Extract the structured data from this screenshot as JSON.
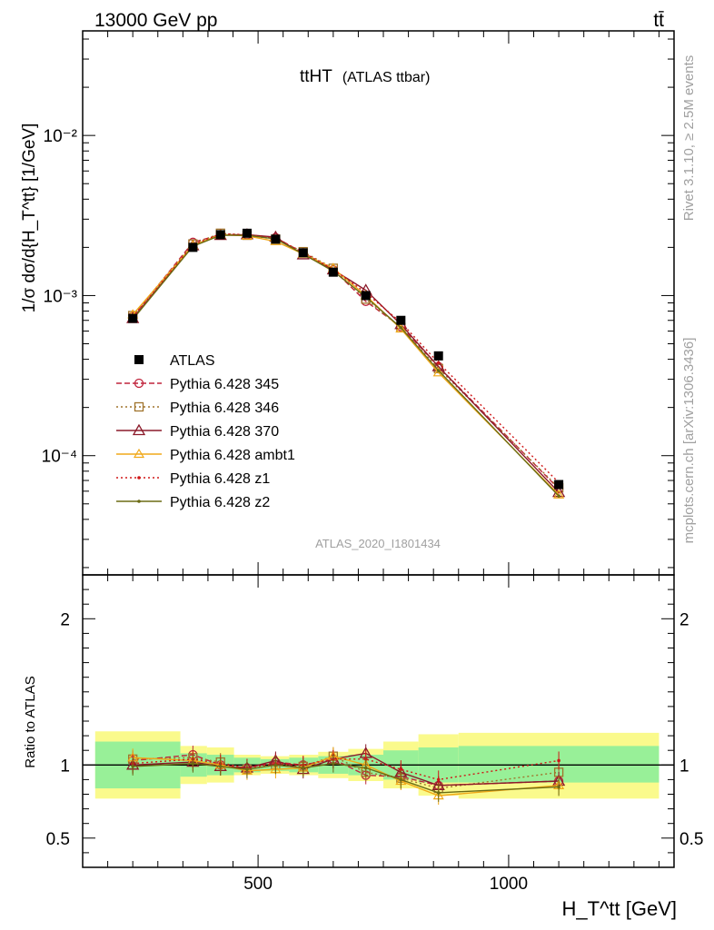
{
  "header": {
    "left": "13000 GeV pp",
    "right": "tt̄"
  },
  "plot_title": {
    "main": "ttHT",
    "sub": "(ATLAS ttbar)"
  },
  "side_labels": {
    "rivet": "Rivet 3.1.10, ≥ 2.5M events",
    "mcplots": "mcplots.cern.ch [arXiv:1306.3436]"
  },
  "analysis_id": "ATLAS_2020_I1801434",
  "ylabel_main": "1/σ dσ/d{H_T^tt} [1/GeV]",
  "ylabel_ratio": "Ratio to ATLAS",
  "xlabel": "H_T^tt [GeV]",
  "colors": {
    "data": "#000000",
    "p345": "#c0243c",
    "p346": "#a0742c",
    "p370": "#8b1a2a",
    "ambt1": "#f0a818",
    "z1": "#d01818",
    "z2": "#6b6b14",
    "band_inner": "#98f098",
    "band_outer": "#fafa8c"
  },
  "chart_data": [
    {
      "type": "line",
      "panel": "main",
      "x_scale": "linear",
      "y_scale": "log",
      "xlim": [
        150,
        1330
      ],
      "ylim": [
        1.8e-05,
        0.045
      ],
      "yticks": [
        {
          "v": 0.01,
          "label": "10⁻²"
        },
        {
          "v": 0.001,
          "label": "10⁻³"
        },
        {
          "v": 0.0001,
          "label": "10⁻⁴"
        }
      ],
      "x": [
        250,
        370,
        425,
        478,
        535,
        590,
        650,
        715,
        785,
        860,
        1100
      ],
      "data": {
        "name": "ATLAS",
        "values": [
          0.00072,
          0.002,
          0.0024,
          0.00245,
          0.00225,
          0.00185,
          0.0014,
          0.001,
          0.0007,
          0.00042,
          6.6e-05
        ]
      },
      "series": [
        {
          "name": "Pythia 6.428 345",
          "values": [
            0.00074,
            0.00215,
            0.0024,
            0.0024,
            0.0023,
            0.00185,
            0.00145,
            0.00092,
            0.00064,
            0.00036,
            6.2e-05
          ]
        },
        {
          "name": "Pythia 6.428 346",
          "values": [
            0.00075,
            0.0021,
            0.00245,
            0.00238,
            0.00225,
            0.00188,
            0.00148,
            0.00095,
            0.00063,
            0.00035,
            6.3e-05
          ]
        },
        {
          "name": "Pythia 6.428 370",
          "values": [
            0.00072,
            0.00205,
            0.00238,
            0.0024,
            0.00232,
            0.0018,
            0.00145,
            0.00108,
            0.00066,
            0.00036,
            5.9e-05
          ]
        },
        {
          "name": "Pythia 6.428 ambt1",
          "values": [
            0.00076,
            0.00206,
            0.0024,
            0.00236,
            0.00218,
            0.00182,
            0.00148,
            0.001,
            0.00062,
            0.00033,
            5.7e-05
          ]
        },
        {
          "name": "Pythia 6.428 z1",
          "values": [
            0.00073,
            0.00208,
            0.00243,
            0.0024,
            0.00228,
            0.00186,
            0.00146,
            0.00104,
            0.00068,
            0.00038,
            6.8e-05
          ]
        },
        {
          "name": "Pythia 6.428 z2",
          "values": [
            0.00071,
            0.00203,
            0.00238,
            0.00238,
            0.00226,
            0.00182,
            0.00142,
            0.00098,
            0.00063,
            0.00034,
            5.6e-05
          ]
        }
      ],
      "legend_position": "center-left"
    },
    {
      "type": "line",
      "panel": "ratio",
      "xlim": [
        150,
        1330
      ],
      "ylim": [
        0.3,
        2.3
      ],
      "yticks": [
        {
          "v": 0.5,
          "label": "0.5"
        },
        {
          "v": 1,
          "label": "1"
        },
        {
          "v": 2,
          "label": "2"
        }
      ],
      "xticks": [
        {
          "v": 500,
          "label": "500"
        },
        {
          "v": 1000,
          "label": "1000"
        }
      ],
      "bins": [
        [
          175,
          345
        ],
        [
          345,
          398
        ],
        [
          398,
          452
        ],
        [
          452,
          505
        ],
        [
          505,
          562
        ],
        [
          562,
          620
        ],
        [
          620,
          680
        ],
        [
          680,
          750
        ],
        [
          750,
          820
        ],
        [
          820,
          900
        ],
        [
          900,
          1300
        ]
      ],
      "band_inner": [
        [
          0.84,
          1.16
        ],
        [
          0.92,
          1.08
        ],
        [
          0.93,
          1.07
        ],
        [
          0.95,
          1.05
        ],
        [
          0.96,
          1.04
        ],
        [
          0.95,
          1.05
        ],
        [
          0.94,
          1.06
        ],
        [
          0.93,
          1.07
        ],
        [
          0.9,
          1.1
        ],
        [
          0.88,
          1.12
        ],
        [
          0.88,
          1.13
        ]
      ],
      "band_outer": [
        [
          0.77,
          1.23
        ],
        [
          0.87,
          1.13
        ],
        [
          0.88,
          1.12
        ],
        [
          0.93,
          1.07
        ],
        [
          0.94,
          1.06
        ],
        [
          0.93,
          1.07
        ],
        [
          0.91,
          1.09
        ],
        [
          0.89,
          1.11
        ],
        [
          0.84,
          1.16
        ],
        [
          0.79,
          1.21
        ],
        [
          0.77,
          1.22
        ]
      ],
      "x": [
        250,
        370,
        425,
        478,
        535,
        590,
        650,
        715,
        785,
        860,
        1100
      ],
      "series": [
        {
          "name": "Pythia 6.428 345",
          "values": [
            1.03,
            1.07,
            1.0,
            0.98,
            1.02,
            1.0,
            1.04,
            0.93,
            0.92,
            0.86,
            0.89
          ]
        },
        {
          "name": "Pythia 6.428 346",
          "values": [
            1.04,
            1.05,
            1.02,
            0.97,
            1.0,
            0.99,
            1.06,
            0.95,
            0.91,
            0.84,
            0.95
          ]
        },
        {
          "name": "Pythia 6.428 370",
          "values": [
            1.0,
            1.02,
            0.99,
            0.98,
            1.03,
            0.97,
            1.04,
            1.08,
            0.95,
            0.86,
            0.89
          ]
        },
        {
          "name": "Pythia 6.428 ambt1",
          "values": [
            1.05,
            1.03,
            1.0,
            0.96,
            0.97,
            0.98,
            1.06,
            1.0,
            0.89,
            0.79,
            0.86
          ]
        },
        {
          "name": "Pythia 6.428 z1",
          "values": [
            1.01,
            1.04,
            1.01,
            0.98,
            1.01,
            1.0,
            1.04,
            1.04,
            0.97,
            0.9,
            1.03
          ]
        },
        {
          "name": "Pythia 6.428 z2",
          "values": [
            0.99,
            1.01,
            0.99,
            0.97,
            1.0,
            0.98,
            1.01,
            0.98,
            0.9,
            0.81,
            0.85
          ]
        }
      ]
    }
  ]
}
